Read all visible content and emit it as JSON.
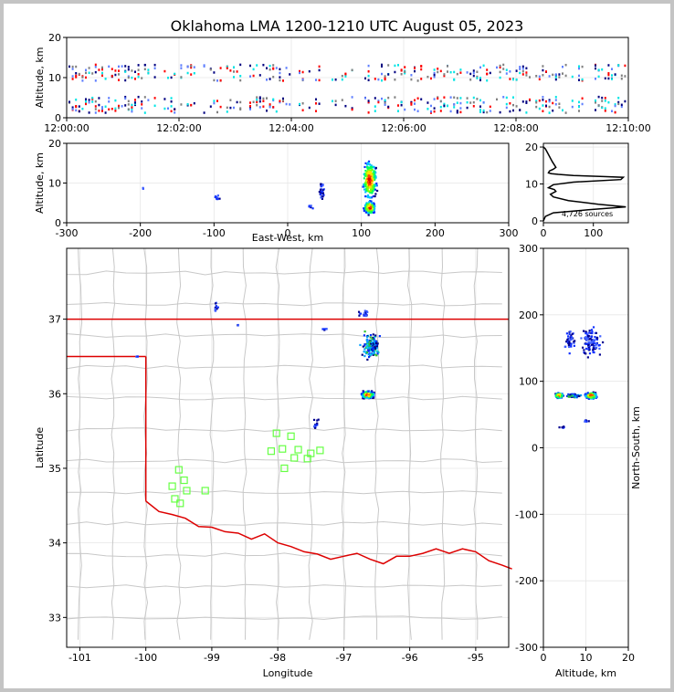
{
  "chart_data": [
    {
      "id": "time_height",
      "type": "heatmap",
      "title": "Oklahoma LMA 1200-1210 UTC August 05, 2023",
      "xlabel": "",
      "ylabel": "Altitude, km",
      "x_ticks": [
        "12:00:00",
        "12:02:00",
        "12:04:00",
        "12:06:00",
        "12:08:00",
        "12:10:00"
      ],
      "y_ticks": [
        0,
        10,
        20
      ],
      "xlim": [
        "12:00:00",
        "12:10:00"
      ],
      "ylim": [
        0,
        20
      ],
      "description_values": {
        "bands_km": [
          [
            1.5,
            5.5
          ],
          [
            9.5,
            13.5
          ]
        ],
        "colors": [
          "#00e5e5",
          "#6080ff",
          "#ff0000",
          "#000080",
          "#808080"
        ]
      }
    },
    {
      "id": "ew_height",
      "type": "heatmap",
      "xlabel": "East-West, km",
      "ylabel": "Altitude, km",
      "x_ticks": [
        -300,
        -200,
        -100,
        0,
        100,
        200,
        300
      ],
      "y_ticks": [
        0,
        10,
        20
      ],
      "xlim": [
        -300,
        300
      ],
      "ylim": [
        0,
        20
      ],
      "clusters": [
        {
          "x": 110,
          "y": 11,
          "dx": 12,
          "dy": 6,
          "n": 260,
          "intensity": "high"
        },
        {
          "x": 110,
          "y": 4,
          "dx": 10,
          "dy": 2,
          "n": 120,
          "intensity": "high"
        },
        {
          "x": 45,
          "y": 8,
          "dx": 5,
          "dy": 3,
          "n": 25,
          "intensity": "low"
        },
        {
          "x": -97,
          "y": 6.5,
          "dx": 4,
          "dy": 1,
          "n": 10,
          "intensity": "low"
        },
        {
          "x": -198,
          "y": 9,
          "dx": 1,
          "dy": 0.3,
          "n": 2,
          "intensity": "low"
        },
        {
          "x": 30,
          "y": 4.5,
          "dx": 5,
          "dy": 1,
          "n": 6,
          "intensity": "low"
        }
      ]
    },
    {
      "id": "altitude_histogram",
      "type": "line",
      "xlabel": "",
      "ylabel": "",
      "x_ticks": [
        0,
        100
      ],
      "y_ticks": [
        0,
        10,
        20
      ],
      "xlim": [
        0,
        170
      ],
      "ylim": [
        -0.5,
        21
      ],
      "annotation": "4,726 sources",
      "x": [
        0,
        4,
        8,
        18,
        25,
        20,
        12,
        10,
        16,
        30,
        60,
        120,
        160,
        155,
        60,
        20,
        10,
        22,
        25,
        14,
        20,
        50,
        110,
        165,
        90,
        20,
        4,
        0
      ],
      "y": [
        20,
        19.5,
        18.5,
        16,
        14.5,
        14,
        13.5,
        13,
        12.8,
        12.6,
        12.3,
        12,
        11.8,
        11.2,
        10.5,
        9.8,
        9,
        8.5,
        8,
        7.2,
        6.5,
        5.5,
        4.5,
        3.8,
        3,
        2.2,
        1.2,
        0
      ]
    },
    {
      "id": "plan_view",
      "type": "scatter",
      "xlabel": "Longitude",
      "ylabel": "Latitude",
      "x_ticks": [
        -101,
        -100,
        -99,
        -98,
        -97,
        -96,
        -95
      ],
      "y_ticks": [
        33,
        34,
        35,
        36,
        37
      ],
      "xlim": [
        -101.2,
        -94.5
      ],
      "ylim": [
        32.6,
        37.95
      ],
      "stations": [
        {
          "lon": -98.02,
          "lat": 35.47
        },
        {
          "lon": -97.8,
          "lat": 35.43
        },
        {
          "lon": -98.1,
          "lat": 35.23
        },
        {
          "lon": -97.93,
          "lat": 35.26
        },
        {
          "lon": -97.69,
          "lat": 35.25
        },
        {
          "lon": -97.5,
          "lat": 35.2
        },
        {
          "lon": -97.36,
          "lat": 35.24
        },
        {
          "lon": -97.75,
          "lat": 35.14
        },
        {
          "lon": -97.55,
          "lat": 35.13
        },
        {
          "lon": -97.9,
          "lat": 35.0
        },
        {
          "lon": -99.5,
          "lat": 34.98
        },
        {
          "lon": -99.42,
          "lat": 34.84
        },
        {
          "lon": -99.6,
          "lat": 34.76
        },
        {
          "lon": -99.38,
          "lat": 34.7
        },
        {
          "lon": -99.1,
          "lat": 34.7
        },
        {
          "lon": -99.56,
          "lat": 34.59
        },
        {
          "lon": -99.48,
          "lat": 34.53
        }
      ],
      "clusters": [
        {
          "lon": -96.65,
          "lat": 36.0,
          "dx": 0.12,
          "dy": 0.06,
          "n": 300,
          "intensity": "high"
        },
        {
          "lon": -96.6,
          "lat": 36.65,
          "dx": 0.18,
          "dy": 0.22,
          "n": 140,
          "intensity": "mid"
        },
        {
          "lon": -96.72,
          "lat": 37.08,
          "dx": 0.12,
          "dy": 0.08,
          "n": 18,
          "intensity": "low"
        },
        {
          "lon": -98.95,
          "lat": 37.18,
          "dx": 0.04,
          "dy": 0.07,
          "n": 12,
          "intensity": "low"
        },
        {
          "lon": -97.44,
          "lat": 35.6,
          "dx": 0.05,
          "dy": 0.1,
          "n": 14,
          "intensity": "low"
        },
        {
          "lon": -97.3,
          "lat": 36.88,
          "dx": 0.05,
          "dy": 0.02,
          "n": 7,
          "intensity": "low"
        },
        {
          "lon": -100.15,
          "lat": 36.51,
          "dx": 0.05,
          "dy": 0.01,
          "n": 4,
          "intensity": "low"
        },
        {
          "lon": -98.62,
          "lat": 36.93,
          "dx": 0.02,
          "dy": 0.03,
          "n": 3,
          "intensity": "low"
        }
      ],
      "state_border_color": "#dd0000",
      "county_line_color": "#c8c8c8",
      "station_color": "#66ff44"
    },
    {
      "id": "ns_height",
      "type": "heatmap",
      "xlabel": "Altitude, km",
      "ylabel": "North-South, km",
      "x_ticks": [
        0,
        10,
        20
      ],
      "y_ticks": [
        -300,
        -200,
        -100,
        0,
        100,
        200,
        300
      ],
      "xlim": [
        0,
        20
      ],
      "ylim": [
        -300,
        300
      ],
      "clusters": [
        {
          "x": 11,
          "y": 80,
          "dx": 1.8,
          "dy": 6,
          "n": 180,
          "intensity": "high"
        },
        {
          "x": 3.5,
          "y": 80,
          "dx": 1.2,
          "dy": 5,
          "n": 120,
          "intensity": "high"
        },
        {
          "x": 7,
          "y": 80,
          "dx": 2,
          "dy": 4,
          "n": 60,
          "intensity": "mid"
        },
        {
          "x": 11,
          "y": 160,
          "dx": 3,
          "dy": 30,
          "n": 110,
          "intensity": "low"
        },
        {
          "x": 6,
          "y": 165,
          "dx": 1.5,
          "dy": 25,
          "n": 40,
          "intensity": "low"
        },
        {
          "x": 10,
          "y": 42,
          "dx": 1,
          "dy": 2,
          "n": 8,
          "intensity": "low"
        },
        {
          "x": 4,
          "y": 33,
          "dx": 1,
          "dy": 3,
          "n": 6,
          "intensity": "low"
        }
      ]
    }
  ]
}
